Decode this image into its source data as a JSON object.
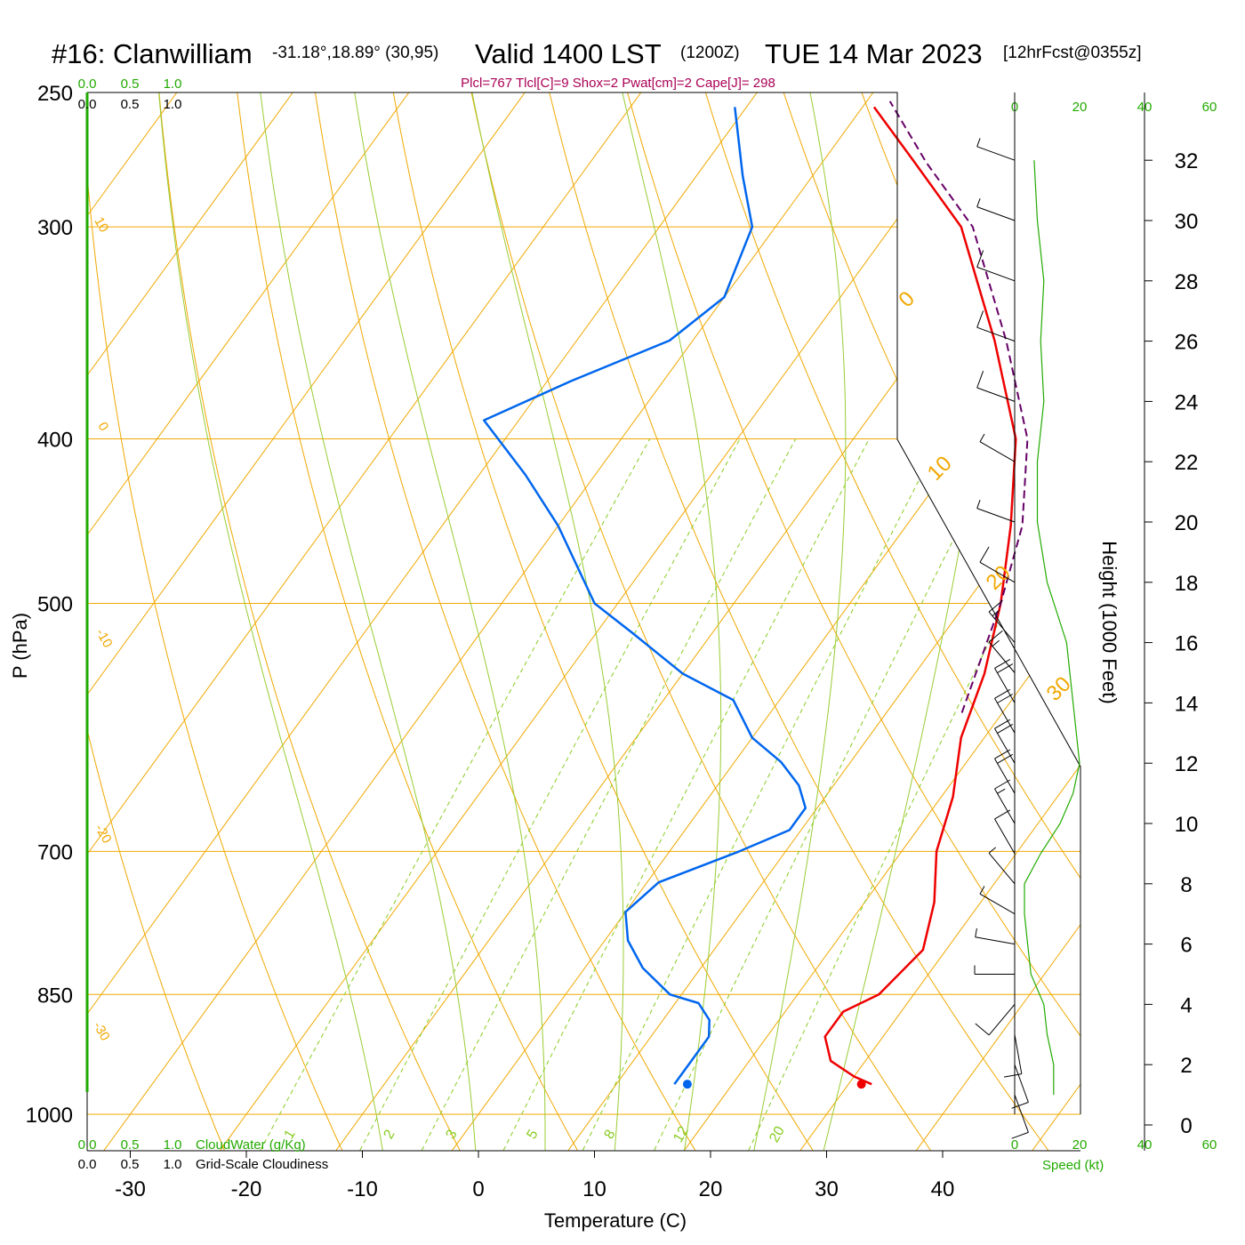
{
  "header": {
    "station": "#16: Clanwilliam",
    "coords": "-31.18°,18.89° (30,95)",
    "valid": "Valid 1400 LST",
    "utc": "(1200Z)",
    "date": "TUE 14 Mar 2023",
    "forecast": "[12hrFcst@0355z]",
    "indices": "Plcl=767 Tlcl[C]=9 Shox=2 Pwat[cm]=2 Cape[J]= 298"
  },
  "labels": {
    "y_axis": "P (hPa)",
    "x_axis": "Temperature (C)",
    "height_axis": "Height (1000 Feet)",
    "cloudwater_label": "CloudWater (g/Kg)",
    "cloudiness_label": "Grid-Scale Cloudiness",
    "speed_label": "Speed (kt)"
  },
  "colors": {
    "temperature": "#ee0000",
    "dewpoint": "#0066ee",
    "parcel": "#660066",
    "isotherm_grid": "#f0a800",
    "mixing_ratio": "#88cc22",
    "moist_adiabat": "#99cc33",
    "wind_speed": "#22aa00",
    "indices": "#aa0055"
  },
  "chart_data": {
    "type": "line",
    "pressure_ticks": [
      "250",
      "300",
      "400",
      "500",
      "700",
      "850",
      "1000"
    ],
    "temperature_ticks": [
      "-30",
      "-20",
      "-10",
      "0",
      "10",
      "20",
      "30",
      "40"
    ],
    "height_ticks": [
      "0",
      "2",
      "4",
      "6",
      "8",
      "10",
      "12",
      "14",
      "16",
      "18",
      "20",
      "22",
      "24",
      "26",
      "28",
      "30",
      "32"
    ],
    "cloud_ticks_top": [
      "0.0",
      "0.5",
      "1.0"
    ],
    "cloud_ticks_bottom": [
      "0.0",
      "0.5",
      "1.0"
    ],
    "speed_ticks": [
      "0",
      "20",
      "40",
      "60"
    ],
    "isotherm_labels": [
      "10",
      "0",
      "-10",
      "-20",
      "-30",
      "0",
      "10",
      "20",
      "30"
    ],
    "mixing_ratio_labels": [
      "1",
      "2",
      "3",
      "5",
      "8",
      "12",
      "20"
    ],
    "ylim_hpa": [
      1000,
      250
    ],
    "xlim_c": [
      -34,
      36
    ],
    "series": [
      {
        "name": "Temperature",
        "points_p_t": [
          [
            960,
            32
          ],
          [
            950,
            30
          ],
          [
            930,
            27
          ],
          [
            900,
            25
          ],
          [
            870,
            25
          ],
          [
            850,
            27
          ],
          [
            800,
            28
          ],
          [
            750,
            26
          ],
          [
            700,
            23
          ],
          [
            650,
            21
          ],
          [
            600,
            18
          ],
          [
            550,
            16
          ],
          [
            500,
            13
          ],
          [
            450,
            9
          ],
          [
            400,
            4
          ],
          [
            350,
            -4
          ],
          [
            300,
            -14
          ],
          [
            275,
            -22
          ],
          [
            255,
            -29
          ]
        ]
      },
      {
        "name": "Dewpoint",
        "points_p_t": [
          [
            960,
            15
          ],
          [
            930,
            15
          ],
          [
            900,
            15
          ],
          [
            880,
            14
          ],
          [
            860,
            12
          ],
          [
            850,
            9
          ],
          [
            820,
            5
          ],
          [
            790,
            2
          ],
          [
            760,
            0
          ],
          [
            730,
            1
          ],
          [
            700,
            6
          ],
          [
            680,
            9
          ],
          [
            660,
            9
          ],
          [
            640,
            7
          ],
          [
            620,
            4
          ],
          [
            600,
            0
          ],
          [
            570,
            -4
          ],
          [
            550,
            -10
          ],
          [
            520,
            -17
          ],
          [
            500,
            -22
          ],
          [
            450,
            -30
          ],
          [
            420,
            -36
          ],
          [
            390,
            -43
          ],
          [
            370,
            -38
          ],
          [
            350,
            -32
          ],
          [
            330,
            -30
          ],
          [
            300,
            -32
          ],
          [
            280,
            -36
          ],
          [
            255,
            -41
          ]
        ]
      },
      {
        "name": "Parcel",
        "points_p_t": [
          [
            580,
            16.5
          ],
          [
            500,
            13
          ],
          [
            450,
            10
          ],
          [
            400,
            5
          ],
          [
            350,
            -3
          ],
          [
            300,
            -13
          ],
          [
            275,
            -21
          ],
          [
            253,
            -28
          ]
        ]
      }
    ],
    "surface_temperature_c": 33,
    "surface_dewpoint_c": 18,
    "winds": [
      {
        "height_kft": 1,
        "speed_kt": 12,
        "dir_deg": 160
      },
      {
        "height_kft": 2,
        "speed_kt": 12,
        "dir_deg": 160
      },
      {
        "height_kft": 3,
        "speed_kt": 10,
        "dir_deg": 170
      },
      {
        "height_kft": 4,
        "speed_kt": 9,
        "dir_deg": 220
      },
      {
        "height_kft": 5,
        "speed_kt": 5,
        "dir_deg": 270
      },
      {
        "height_kft": 6,
        "speed_kt": 4,
        "dir_deg": 280
      },
      {
        "height_kft": 7,
        "speed_kt": 3,
        "dir_deg": 300
      },
      {
        "height_kft": 8,
        "speed_kt": 3,
        "dir_deg": 320
      },
      {
        "height_kft": 9,
        "speed_kt": 8,
        "dir_deg": 330
      },
      {
        "height_kft": 10,
        "speed_kt": 14,
        "dir_deg": 330
      },
      {
        "height_kft": 11,
        "speed_kt": 18,
        "dir_deg": 330
      },
      {
        "height_kft": 12,
        "speed_kt": 20,
        "dir_deg": 330
      },
      {
        "height_kft": 13,
        "speed_kt": 19,
        "dir_deg": 330
      },
      {
        "height_kft": 14,
        "speed_kt": 18,
        "dir_deg": 330
      },
      {
        "height_kft": 15,
        "speed_kt": 17,
        "dir_deg": 320
      },
      {
        "height_kft": 16,
        "speed_kt": 16,
        "dir_deg": 320
      },
      {
        "height_kft": 18,
        "speed_kt": 10,
        "dir_deg": 300
      },
      {
        "height_kft": 20,
        "speed_kt": 7,
        "dir_deg": 290
      },
      {
        "height_kft": 22,
        "speed_kt": 7,
        "dir_deg": 300
      },
      {
        "height_kft": 24,
        "speed_kt": 9,
        "dir_deg": 290
      },
      {
        "height_kft": 26,
        "speed_kt": 8,
        "dir_deg": 290
      },
      {
        "height_kft": 28,
        "speed_kt": 9,
        "dir_deg": 290
      },
      {
        "height_kft": 30,
        "speed_kt": 7,
        "dir_deg": 290
      },
      {
        "height_kft": 32,
        "speed_kt": 6,
        "dir_deg": 290
      }
    ]
  }
}
